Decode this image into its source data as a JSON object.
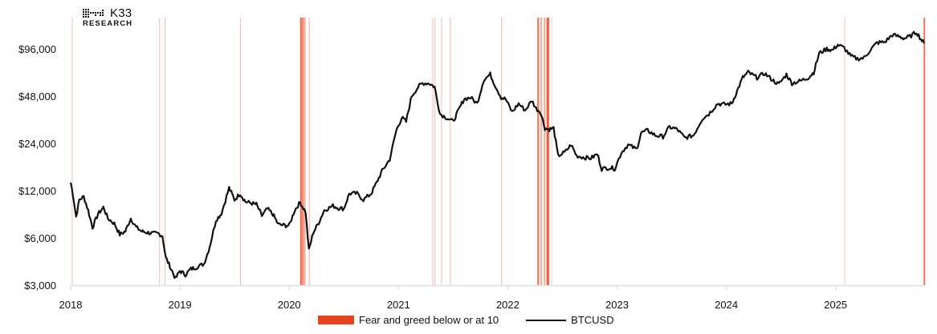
{
  "logo": {
    "name": "K33",
    "subtitle": "RESEARCH"
  },
  "legend": {
    "fear_label": "Fear and greed below or at 10",
    "btc_label": "BTCUSD"
  },
  "colors": {
    "fear_band": "#e8431f",
    "line": "#111111",
    "axis": "#dcdfe3"
  },
  "chart_data": {
    "type": "line",
    "title": "",
    "xlabel": "",
    "ylabel": "",
    "y_scale": "log",
    "ylim": [
      3000,
      140000
    ],
    "y_ticks": [
      {
        "value": 3000,
        "label": "$3,000"
      },
      {
        "value": 6000,
        "label": "$6,000"
      },
      {
        "value": 12000,
        "label": "$12,000"
      },
      {
        "value": 24000,
        "label": "$24,000"
      },
      {
        "value": 48000,
        "label": "$48,000"
      },
      {
        "value": 96000,
        "label": "$96,000"
      }
    ],
    "x_ticks": [
      "2018",
      "2019",
      "2020",
      "2021",
      "2022",
      "2023",
      "2024",
      "2025"
    ],
    "xlim": [
      2018.0,
      2025.81
    ],
    "grid": false,
    "legend_position": "bottom",
    "series": [
      {
        "name": "BTCUSD",
        "points": [
          [
            2018.0,
            13500
          ],
          [
            2018.02,
            11500
          ],
          [
            2018.05,
            8200
          ],
          [
            2018.08,
            10500
          ],
          [
            2018.12,
            11000
          ],
          [
            2018.16,
            9000
          ],
          [
            2018.2,
            7000
          ],
          [
            2018.25,
            8500
          ],
          [
            2018.3,
            9400
          ],
          [
            2018.34,
            8000
          ],
          [
            2018.4,
            7400
          ],
          [
            2018.45,
            6300
          ],
          [
            2018.5,
            6600
          ],
          [
            2018.55,
            8000
          ],
          [
            2018.6,
            7000
          ],
          [
            2018.65,
            6600
          ],
          [
            2018.7,
            6500
          ],
          [
            2018.75,
            6400
          ],
          [
            2018.8,
            6400
          ],
          [
            2018.84,
            6200
          ],
          [
            2018.87,
            4500
          ],
          [
            2018.92,
            3800
          ],
          [
            2018.96,
            3300
          ],
          [
            2019.0,
            3700
          ],
          [
            2019.05,
            3500
          ],
          [
            2019.1,
            3800
          ],
          [
            2019.15,
            3900
          ],
          [
            2019.22,
            4100
          ],
          [
            2019.27,
            5200
          ],
          [
            2019.33,
            7800
          ],
          [
            2019.38,
            8600
          ],
          [
            2019.45,
            12500
          ],
          [
            2019.5,
            10500
          ],
          [
            2019.55,
            11500
          ],
          [
            2019.6,
            10200
          ],
          [
            2019.65,
            10000
          ],
          [
            2019.7,
            9800
          ],
          [
            2019.75,
            8300
          ],
          [
            2019.8,
            9200
          ],
          [
            2019.85,
            8500
          ],
          [
            2019.9,
            7300
          ],
          [
            2019.96,
            7200
          ],
          [
            2020.0,
            7200
          ],
          [
            2020.05,
            9000
          ],
          [
            2020.1,
            10100
          ],
          [
            2020.15,
            8800
          ],
          [
            2020.18,
            5000
          ],
          [
            2020.22,
            6500
          ],
          [
            2020.27,
            7500
          ],
          [
            2020.32,
            9000
          ],
          [
            2020.4,
            9600
          ],
          [
            2020.45,
            9300
          ],
          [
            2020.5,
            9200
          ],
          [
            2020.55,
            11500
          ],
          [
            2020.62,
            11500
          ],
          [
            2020.68,
            10500
          ],
          [
            2020.75,
            11500
          ],
          [
            2020.8,
            13500
          ],
          [
            2020.85,
            16000
          ],
          [
            2020.92,
            19000
          ],
          [
            2020.98,
            29000
          ],
          [
            2021.03,
            35000
          ],
          [
            2021.07,
            33000
          ],
          [
            2021.12,
            48000
          ],
          [
            2021.18,
            55000
          ],
          [
            2021.22,
            58000
          ],
          [
            2021.28,
            58000
          ],
          [
            2021.33,
            55000
          ],
          [
            2021.38,
            37000
          ],
          [
            2021.44,
            35000
          ],
          [
            2021.5,
            33000
          ],
          [
            2021.55,
            39000
          ],
          [
            2021.6,
            46000
          ],
          [
            2021.66,
            47000
          ],
          [
            2021.72,
            43000
          ],
          [
            2021.78,
            61000
          ],
          [
            2021.84,
            66000
          ],
          [
            2021.88,
            57000
          ],
          [
            2021.94,
            47000
          ],
          [
            2021.98,
            46000
          ],
          [
            2022.04,
            38000
          ],
          [
            2022.1,
            43000
          ],
          [
            2022.16,
            39000
          ],
          [
            2022.22,
            45000
          ],
          [
            2022.26,
            40000
          ],
          [
            2022.3,
            38000
          ],
          [
            2022.34,
            30000
          ],
          [
            2022.38,
            29500
          ],
          [
            2022.42,
            30000
          ],
          [
            2022.46,
            20000
          ],
          [
            2022.52,
            21000
          ],
          [
            2022.58,
            23500
          ],
          [
            2022.63,
            20000
          ],
          [
            2022.7,
            19500
          ],
          [
            2022.76,
            19300
          ],
          [
            2022.82,
            20500
          ],
          [
            2022.86,
            16500
          ],
          [
            2022.92,
            16800
          ],
          [
            2022.98,
            16600
          ],
          [
            2023.04,
            21000
          ],
          [
            2023.1,
            23500
          ],
          [
            2023.18,
            22000
          ],
          [
            2023.22,
            28000
          ],
          [
            2023.28,
            29000
          ],
          [
            2023.35,
            27000
          ],
          [
            2023.42,
            26500
          ],
          [
            2023.48,
            30500
          ],
          [
            2023.55,
            29500
          ],
          [
            2023.62,
            26000
          ],
          [
            2023.7,
            27000
          ],
          [
            2023.78,
            34500
          ],
          [
            2023.84,
            37000
          ],
          [
            2023.92,
            43000
          ],
          [
            2023.98,
            42500
          ],
          [
            2024.05,
            43000
          ],
          [
            2024.1,
            52000
          ],
          [
            2024.15,
            63000
          ],
          [
            2024.2,
            68000
          ],
          [
            2024.28,
            63000
          ],
          [
            2024.35,
            67000
          ],
          [
            2024.42,
            61000
          ],
          [
            2024.48,
            57000
          ],
          [
            2024.55,
            66000
          ],
          [
            2024.6,
            58000
          ],
          [
            2024.68,
            60000
          ],
          [
            2024.75,
            63000
          ],
          [
            2024.8,
            68000
          ],
          [
            2024.85,
            90000
          ],
          [
            2024.92,
            96000
          ],
          [
            2024.97,
            94000
          ],
          [
            2025.02,
            102000
          ],
          [
            2025.08,
            97000
          ],
          [
            2025.14,
            86000
          ],
          [
            2025.2,
            83000
          ],
          [
            2025.26,
            84000
          ],
          [
            2025.32,
            95000
          ],
          [
            2025.38,
            105000
          ],
          [
            2025.45,
            106000
          ],
          [
            2025.52,
            118000
          ],
          [
            2025.58,
            115000
          ],
          [
            2025.63,
            112000
          ],
          [
            2025.68,
            115000
          ],
          [
            2025.74,
            123000
          ],
          [
            2025.78,
            111000
          ],
          [
            2025.81,
            104000
          ]
        ]
      }
    ],
    "fear_bands": [
      {
        "x": 2018.01,
        "width": 1,
        "opacity": 0.35
      },
      {
        "x": 2018.81,
        "width": 1,
        "opacity": 0.35
      },
      {
        "x": 2018.86,
        "width": 1,
        "opacity": 0.35
      },
      {
        "x": 2019.55,
        "width": 1,
        "opacity": 0.35
      },
      {
        "x": 2020.1,
        "width": 2,
        "opacity": 0.8
      },
      {
        "x": 2020.115,
        "width": 2,
        "opacity": 0.6
      },
      {
        "x": 2020.13,
        "width": 2,
        "opacity": 0.45
      },
      {
        "x": 2020.145,
        "width": 1,
        "opacity": 0.3
      },
      {
        "x": 2020.18,
        "width": 1,
        "opacity": 0.45
      },
      {
        "x": 2021.31,
        "width": 1,
        "opacity": 0.35
      },
      {
        "x": 2021.33,
        "width": 1,
        "opacity": 0.35
      },
      {
        "x": 2021.39,
        "width": 1,
        "opacity": 0.35
      },
      {
        "x": 2021.47,
        "width": 1,
        "opacity": 0.4
      },
      {
        "x": 2021.94,
        "width": 1,
        "opacity": 0.4
      },
      {
        "x": 2022.27,
        "width": 2,
        "opacity": 0.7
      },
      {
        "x": 2022.285,
        "width": 1,
        "opacity": 0.35
      },
      {
        "x": 2022.3,
        "width": 2,
        "opacity": 0.45
      },
      {
        "x": 2022.33,
        "width": 2,
        "opacity": 0.45
      },
      {
        "x": 2022.355,
        "width": 3,
        "opacity": 0.85
      },
      {
        "x": 2022.375,
        "width": 1,
        "opacity": 0.35
      },
      {
        "x": 2022.4,
        "width": 1,
        "opacity": 0.25
      },
      {
        "x": 2025.08,
        "width": 1,
        "opacity": 0.3
      },
      {
        "x": 2025.805,
        "width": 2,
        "opacity": 0.75
      }
    ]
  }
}
